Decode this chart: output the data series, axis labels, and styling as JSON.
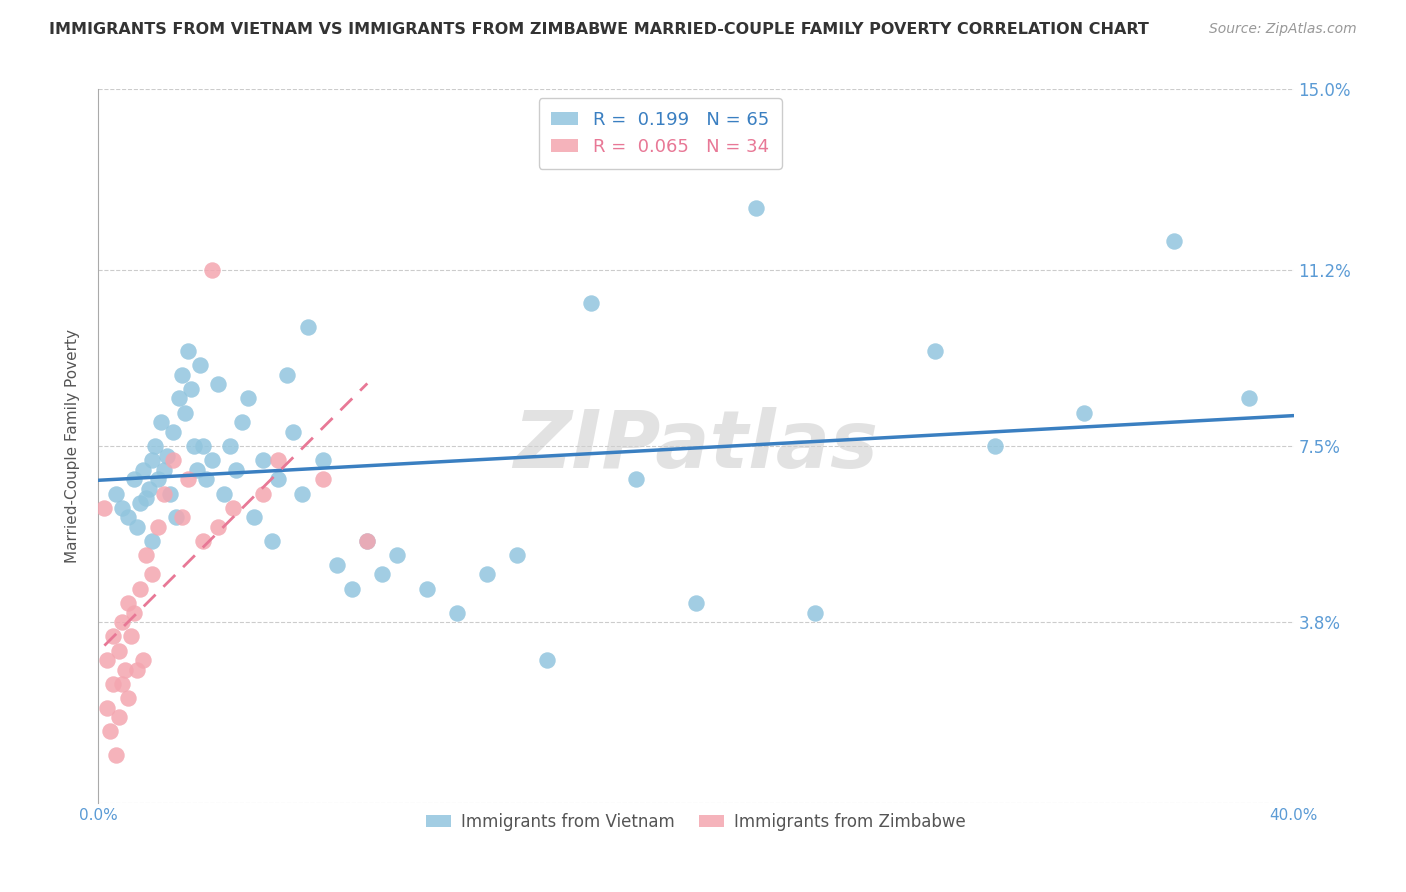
{
  "title": "IMMIGRANTS FROM VIETNAM VS IMMIGRANTS FROM ZIMBABWE MARRIED-COUPLE FAMILY POVERTY CORRELATION CHART",
  "source": "Source: ZipAtlas.com",
  "ylabel": "Married-Couple Family Poverty",
  "xmin": 0.0,
  "xmax": 0.4,
  "ymin": 0.0,
  "ymax": 0.15,
  "yticks": [
    0.0,
    0.038,
    0.075,
    0.112,
    0.15
  ],
  "ytick_labels": [
    "",
    "3.8%",
    "7.5%",
    "11.2%",
    "15.0%"
  ],
  "xticks": [
    0.0,
    0.1,
    0.2,
    0.3,
    0.4
  ],
  "xtick_labels": [
    "0.0%",
    "",
    "",
    "",
    "40.0%"
  ],
  "vietnam_color": "#92c5de",
  "zimbabwe_color": "#f4a6b0",
  "vietnam_line_color": "#3a7fc1",
  "zimbabwe_line_color": "#e87896",
  "vietnam_R": 0.199,
  "vietnam_N": 65,
  "zimbabwe_R": 0.065,
  "zimbabwe_N": 34,
  "legend_label_vietnam": "Immigrants from Vietnam",
  "legend_label_zimbabwe": "Immigrants from Zimbabwe",
  "vietnam_x": [
    0.006,
    0.008,
    0.01,
    0.012,
    0.013,
    0.014,
    0.015,
    0.016,
    0.017,
    0.018,
    0.018,
    0.019,
    0.02,
    0.021,
    0.022,
    0.023,
    0.024,
    0.025,
    0.026,
    0.027,
    0.028,
    0.029,
    0.03,
    0.031,
    0.032,
    0.033,
    0.034,
    0.035,
    0.036,
    0.038,
    0.04,
    0.042,
    0.044,
    0.046,
    0.048,
    0.05,
    0.052,
    0.055,
    0.058,
    0.06,
    0.063,
    0.065,
    0.068,
    0.07,
    0.075,
    0.08,
    0.085,
    0.09,
    0.095,
    0.1,
    0.11,
    0.12,
    0.13,
    0.14,
    0.15,
    0.165,
    0.18,
    0.2,
    0.22,
    0.24,
    0.28,
    0.3,
    0.33,
    0.36,
    0.385
  ],
  "vietnam_y": [
    0.065,
    0.062,
    0.06,
    0.068,
    0.058,
    0.063,
    0.07,
    0.064,
    0.066,
    0.072,
    0.055,
    0.075,
    0.068,
    0.08,
    0.07,
    0.073,
    0.065,
    0.078,
    0.06,
    0.085,
    0.09,
    0.082,
    0.095,
    0.087,
    0.075,
    0.07,
    0.092,
    0.075,
    0.068,
    0.072,
    0.088,
    0.065,
    0.075,
    0.07,
    0.08,
    0.085,
    0.06,
    0.072,
    0.055,
    0.068,
    0.09,
    0.078,
    0.065,
    0.1,
    0.072,
    0.05,
    0.045,
    0.055,
    0.048,
    0.052,
    0.045,
    0.04,
    0.048,
    0.052,
    0.03,
    0.105,
    0.068,
    0.042,
    0.125,
    0.04,
    0.095,
    0.075,
    0.082,
    0.118,
    0.085
  ],
  "zimbabwe_x": [
    0.002,
    0.003,
    0.003,
    0.004,
    0.005,
    0.005,
    0.006,
    0.007,
    0.007,
    0.008,
    0.008,
    0.009,
    0.01,
    0.01,
    0.011,
    0.012,
    0.013,
    0.014,
    0.015,
    0.016,
    0.018,
    0.02,
    0.022,
    0.025,
    0.028,
    0.03,
    0.035,
    0.038,
    0.04,
    0.045,
    0.055,
    0.06,
    0.075,
    0.09
  ],
  "zimbabwe_y": [
    0.062,
    0.02,
    0.03,
    0.015,
    0.025,
    0.035,
    0.01,
    0.032,
    0.018,
    0.038,
    0.025,
    0.028,
    0.042,
    0.022,
    0.035,
    0.04,
    0.028,
    0.045,
    0.03,
    0.052,
    0.048,
    0.058,
    0.065,
    0.072,
    0.06,
    0.068,
    0.055,
    0.112,
    0.058,
    0.062,
    0.065,
    0.072,
    0.068,
    0.055
  ],
  "watermark": "ZIPatlas",
  "background_color": "#ffffff",
  "grid_color": "#cccccc",
  "tick_label_color": "#5b9bd5",
  "axis_line_color": "#aaaaaa",
  "vietnam_line_intercept": 0.065,
  "vietnam_line_slope": 0.038,
  "zimbabwe_line_intercept": 0.056,
  "zimbabwe_line_slope": 0.065
}
